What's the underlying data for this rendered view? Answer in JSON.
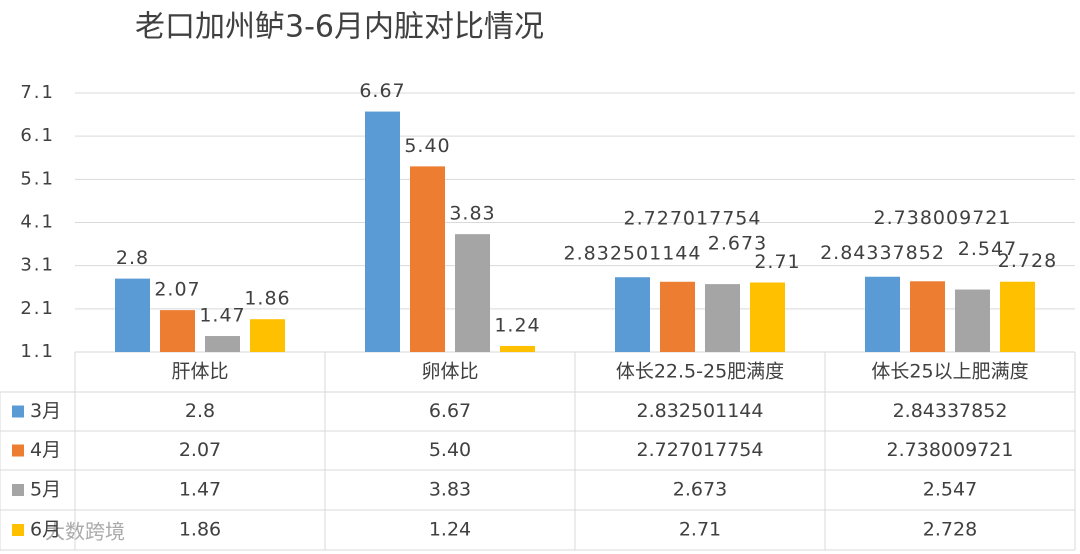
{
  "chart_data": {
    "type": "bar",
    "title": "老口加州鲈3-6月内脏对比情况",
    "categories": [
      "肝体比",
      "卵体比",
      "体长22.5-25肥满度",
      "体长25以上肥满度"
    ],
    "series": [
      {
        "name": "3月",
        "color": "#5b9bd5",
        "values": [
          2.8,
          6.67,
          2.832501144,
          2.84337852
        ]
      },
      {
        "name": "4月",
        "color": "#ed7d31",
        "values": [
          2.07,
          5.4,
          2.727017754,
          2.738009721
        ],
        "value_labels": [
          "2.07",
          "5.40",
          "2.727017754",
          "2.738009721"
        ]
      },
      {
        "name": "5月",
        "color": "#a5a5a5",
        "values": [
          1.47,
          3.83,
          2.673,
          2.547
        ]
      },
      {
        "name": "6月",
        "color": "#ffc000",
        "values": [
          1.86,
          1.24,
          2.71,
          2.728
        ]
      }
    ],
    "ylim": [
      1.1,
      7.1
    ],
    "yticks": [
      1.1,
      2.1,
      3.1,
      4.1,
      5.1,
      6.1,
      7.1
    ],
    "grid": true,
    "watermark": "大数跨境"
  }
}
